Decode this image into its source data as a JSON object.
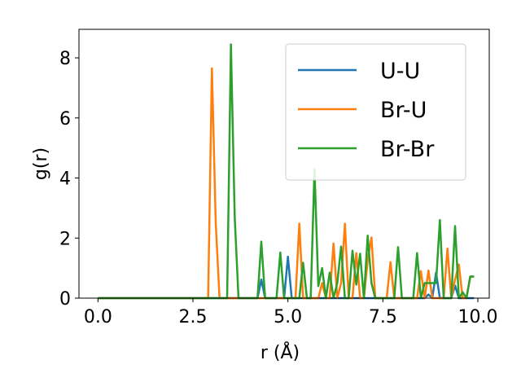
{
  "chart_data": {
    "type": "line",
    "title": "",
    "xlabel": "r (Å)",
    "ylabel": "g(r)",
    "xlim": [
      -0.5,
      10.3
    ],
    "ylim": [
      0,
      8.95
    ],
    "xticks": [
      0.0,
      2.5,
      5.0,
      7.5,
      10.0
    ],
    "xtick_labels": [
      "0.0",
      "2.5",
      "5.0",
      "7.5",
      "10.0"
    ],
    "yticks": [
      0,
      2,
      4,
      6,
      8
    ],
    "ytick_labels": [
      "0",
      "2",
      "4",
      "6",
      "8"
    ],
    "grid": false,
    "legend_position": "top-right",
    "series": [
      {
        "name": "U-U",
        "color": "#1f77b4",
        "points": [
          [
            0,
            0
          ],
          [
            4.2,
            0
          ],
          [
            4.3,
            0.62
          ],
          [
            4.4,
            0
          ],
          [
            4.9,
            0
          ],
          [
            5.0,
            1.38
          ],
          [
            5.1,
            0
          ],
          [
            8.6,
            0
          ],
          [
            8.7,
            0.12
          ],
          [
            8.8,
            0
          ],
          [
            8.9,
            0.85
          ],
          [
            9.0,
            0
          ],
          [
            9.3,
            0
          ],
          [
            9.4,
            0.42
          ],
          [
            9.5,
            0
          ],
          [
            9.9,
            0
          ]
        ]
      },
      {
        "name": "Br-U",
        "color": "#ff7f0e",
        "points": [
          [
            0,
            0
          ],
          [
            2.9,
            0
          ],
          [
            3.0,
            7.65
          ],
          [
            3.1,
            2.5
          ],
          [
            3.2,
            0
          ],
          [
            5.2,
            0
          ],
          [
            5.3,
            2.48
          ],
          [
            5.4,
            0
          ],
          [
            5.8,
            0
          ],
          [
            5.9,
            0.5
          ],
          [
            6.0,
            0
          ],
          [
            6.1,
            0
          ],
          [
            6.2,
            1.82
          ],
          [
            6.3,
            0
          ],
          [
            6.4,
            0.5
          ],
          [
            6.5,
            2.48
          ],
          [
            6.6,
            0
          ],
          [
            6.7,
            0
          ],
          [
            6.8,
            1.5
          ],
          [
            6.9,
            0
          ],
          [
            7.0,
            0
          ],
          [
            7.1,
            1.25
          ],
          [
            7.2,
            2.02
          ],
          [
            7.3,
            0
          ],
          [
            7.6,
            0
          ],
          [
            7.7,
            1.2
          ],
          [
            7.8,
            0
          ],
          [
            8.4,
            0
          ],
          [
            8.5,
            0.9
          ],
          [
            8.6,
            0
          ],
          [
            8.7,
            0.92
          ],
          [
            8.8,
            0
          ],
          [
            9.1,
            0
          ],
          [
            9.2,
            1.65
          ],
          [
            9.3,
            0
          ],
          [
            9.4,
            0.62
          ],
          [
            9.5,
            1.12
          ],
          [
            9.6,
            0
          ],
          [
            9.7,
            0
          ],
          [
            9.8,
            0.72
          ],
          [
            9.9,
            0.72
          ]
        ]
      },
      {
        "name": "Br-Br",
        "color": "#2ca02c",
        "points": [
          [
            0,
            0
          ],
          [
            3.4,
            0
          ],
          [
            3.5,
            8.45
          ],
          [
            3.6,
            2.7
          ],
          [
            3.7,
            0
          ],
          [
            4.2,
            0
          ],
          [
            4.3,
            1.88
          ],
          [
            4.4,
            0
          ],
          [
            4.7,
            0
          ],
          [
            4.8,
            1.52
          ],
          [
            4.9,
            0
          ],
          [
            5.3,
            0
          ],
          [
            5.4,
            1.18
          ],
          [
            5.5,
            0
          ],
          [
            5.6,
            0
          ],
          [
            5.7,
            4.3
          ],
          [
            5.8,
            0.4
          ],
          [
            5.9,
            1.0
          ],
          [
            6.0,
            0
          ],
          [
            6.1,
            0.85
          ],
          [
            6.2,
            0
          ],
          [
            6.3,
            0.5
          ],
          [
            6.4,
            1.72
          ],
          [
            6.5,
            0
          ],
          [
            6.6,
            0
          ],
          [
            6.7,
            1.58
          ],
          [
            6.8,
            0.45
          ],
          [
            6.9,
            1.48
          ],
          [
            7.0,
            0
          ],
          [
            7.1,
            2.08
          ],
          [
            7.2,
            0.5
          ],
          [
            7.3,
            0
          ],
          [
            7.8,
            0
          ],
          [
            7.9,
            1.7
          ],
          [
            8.0,
            0
          ],
          [
            8.3,
            0
          ],
          [
            8.4,
            1.5
          ],
          [
            8.5,
            0
          ],
          [
            8.6,
            0.5
          ],
          [
            8.7,
            0.5
          ],
          [
            8.8,
            0.5
          ],
          [
            8.9,
            0.5
          ],
          [
            9.0,
            2.6
          ],
          [
            9.1,
            0
          ],
          [
            9.2,
            0
          ],
          [
            9.3,
            0
          ],
          [
            9.4,
            2.4
          ],
          [
            9.5,
            0
          ],
          [
            9.6,
            0.2
          ],
          [
            9.7,
            0
          ],
          [
            9.8,
            0.72
          ],
          [
            9.9,
            0.72
          ]
        ]
      }
    ]
  }
}
